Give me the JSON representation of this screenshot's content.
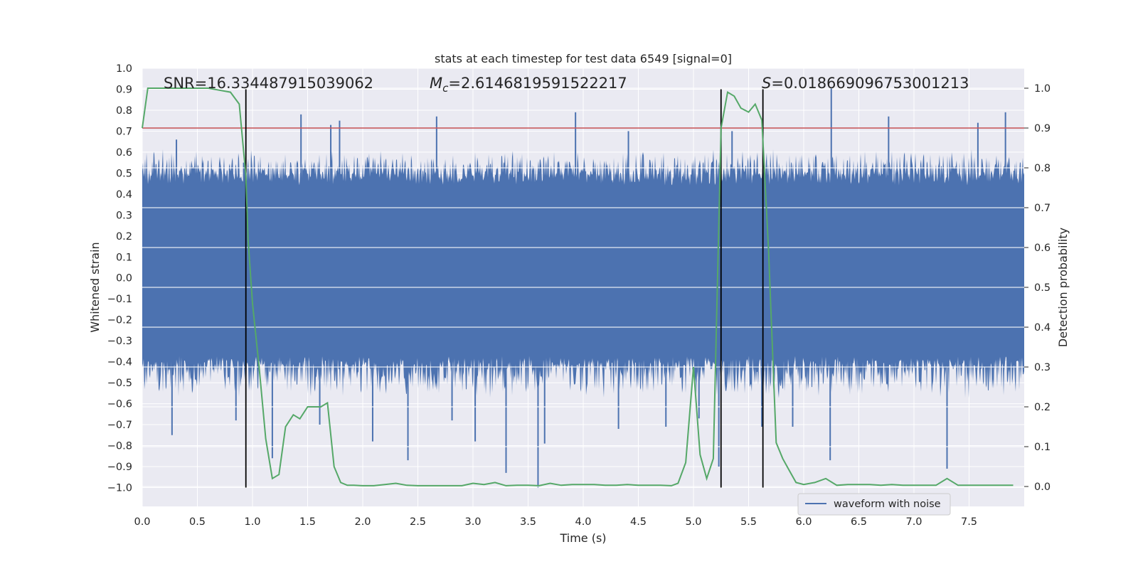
{
  "chart_data": {
    "type": "line",
    "title": "stats at each timestep for test data 6549 [signal=0]",
    "xlabel": "Time (s)",
    "ylabel_left": "Whitened strain",
    "ylabel_right": "Detection probability",
    "xlim": [
      0.0,
      8.0
    ],
    "ylim_left": [
      -1.09,
      1.0
    ],
    "ylim_right": [
      -0.05,
      1.05
    ],
    "x_ticks": [
      "0.0",
      "0.5",
      "1.0",
      "1.5",
      "2.0",
      "2.5",
      "3.0",
      "3.5",
      "4.0",
      "4.5",
      "5.0",
      "5.5",
      "6.0",
      "6.5",
      "7.0",
      "7.5"
    ],
    "y_ticks_left": [
      "1.0",
      "0.9",
      "0.8",
      "0.7",
      "0.6",
      "0.5",
      "0.4",
      "0.3",
      "0.2",
      "0.1",
      "0.0",
      "−0.1",
      "−0.2",
      "−0.3",
      "−0.4",
      "−0.5",
      "−0.6",
      "−0.7",
      "−0.8",
      "−0.9",
      "−1.0"
    ],
    "y_ticks_right": [
      "1.0",
      "0.9",
      "0.8",
      "0.7",
      "0.6",
      "0.5",
      "0.4",
      "0.3",
      "0.2",
      "0.1",
      "0.0"
    ],
    "annotations": {
      "snr": "SNR=16.334487915039062",
      "mc_symbol": "M",
      "mc_sub": "c",
      "mc_value": "=2.6146819591522217",
      "s_symbol": "S",
      "s_value": "=0.018669096753001213"
    },
    "legend": {
      "label": "waveform with noise",
      "placement": "lower-right"
    },
    "threshold": {
      "value_right_axis": 0.9,
      "color": "#c44e52"
    },
    "vertical_markers": [
      0.94,
      5.25,
      5.63
    ],
    "vertical_marker_range_left": [
      -1.0,
      0.9
    ],
    "series": [
      {
        "name": "waveform with noise",
        "axis": "left",
        "color": "#4c72b0",
        "x_range": [
          0.0,
          8.0
        ],
        "envelope": {
          "band": [
            -0.42,
            0.5
          ],
          "typical_peak": 0.62,
          "typical_trough": -0.58
        },
        "spikes": [
          [
            0.27,
            -0.75
          ],
          [
            0.31,
            0.66
          ],
          [
            0.85,
            -0.68
          ],
          [
            0.92,
            0.55
          ],
          [
            1.18,
            -0.86
          ],
          [
            1.44,
            0.78
          ],
          [
            1.61,
            -0.7
          ],
          [
            1.71,
            0.73
          ],
          [
            1.79,
            0.75
          ],
          [
            2.09,
            -0.78
          ],
          [
            2.41,
            -0.87
          ],
          [
            2.67,
            0.77
          ],
          [
            2.81,
            -0.68
          ],
          [
            3.02,
            -0.78
          ],
          [
            3.3,
            -0.93
          ],
          [
            3.59,
            -1.0
          ],
          [
            3.65,
            -0.79
          ],
          [
            3.93,
            0.79
          ],
          [
            4.32,
            -0.72
          ],
          [
            4.41,
            0.7
          ],
          [
            4.75,
            -0.71
          ],
          [
            5.05,
            -0.67
          ],
          [
            5.23,
            -0.9
          ],
          [
            5.35,
            0.7
          ],
          [
            5.62,
            -0.71
          ],
          [
            5.9,
            -0.71
          ],
          [
            6.24,
            -0.87
          ],
          [
            6.25,
            0.91
          ],
          [
            6.77,
            0.77
          ],
          [
            7.3,
            -0.91
          ],
          [
            7.58,
            0.74
          ],
          [
            7.83,
            0.79
          ]
        ]
      },
      {
        "name": "detection probability",
        "axis": "right",
        "color": "#55a868",
        "x": [
          0.0,
          0.05,
          0.1,
          0.2,
          0.3,
          0.4,
          0.5,
          0.6,
          0.7,
          0.8,
          0.88,
          0.94,
          0.96,
          1.0,
          1.06,
          1.12,
          1.18,
          1.24,
          1.3,
          1.37,
          1.43,
          1.5,
          1.56,
          1.62,
          1.68,
          1.74,
          1.8,
          1.86,
          1.92,
          2.0,
          2.1,
          2.2,
          2.3,
          2.4,
          2.5,
          2.6,
          2.7,
          2.8,
          2.9,
          3.0,
          3.1,
          3.2,
          3.3,
          3.4,
          3.5,
          3.6,
          3.7,
          3.8,
          3.9,
          4.0,
          4.1,
          4.2,
          4.3,
          4.4,
          4.5,
          4.6,
          4.7,
          4.8,
          4.86,
          4.93,
          5.0,
          5.06,
          5.12,
          5.18,
          5.25,
          5.31,
          5.37,
          5.43,
          5.5,
          5.56,
          5.62,
          5.68,
          5.75,
          5.81,
          5.87,
          5.93,
          6.0,
          6.1,
          6.2,
          6.3,
          6.4,
          6.5,
          6.6,
          6.7,
          6.8,
          6.9,
          7.0,
          7.1,
          7.2,
          7.3,
          7.4,
          7.5,
          7.6,
          7.7,
          7.8,
          7.9
        ],
        "y": [
          0.9,
          1.0,
          1.0,
          1.0,
          1.0,
          1.0,
          1.0,
          1.0,
          0.995,
          0.99,
          0.96,
          0.78,
          0.62,
          0.46,
          0.3,
          0.12,
          0.02,
          0.03,
          0.15,
          0.18,
          0.17,
          0.2,
          0.2,
          0.2,
          0.21,
          0.05,
          0.01,
          0.003,
          0.003,
          0.002,
          0.002,
          0.005,
          0.008,
          0.003,
          0.002,
          0.002,
          0.002,
          0.002,
          0.002,
          0.008,
          0.005,
          0.01,
          0.002,
          0.003,
          0.003,
          0.002,
          0.008,
          0.003,
          0.005,
          0.005,
          0.005,
          0.003,
          0.003,
          0.005,
          0.003,
          0.003,
          0.003,
          0.002,
          0.008,
          0.06,
          0.3,
          0.08,
          0.02,
          0.07,
          0.9,
          0.99,
          0.98,
          0.95,
          0.94,
          0.96,
          0.92,
          0.6,
          0.11,
          0.07,
          0.04,
          0.01,
          0.005,
          0.01,
          0.02,
          0.003,
          0.005,
          0.005,
          0.005,
          0.003,
          0.005,
          0.003,
          0.003,
          0.003,
          0.003,
          0.02,
          0.003,
          0.003,
          0.003,
          0.003,
          0.003,
          0.003
        ]
      }
    ]
  }
}
